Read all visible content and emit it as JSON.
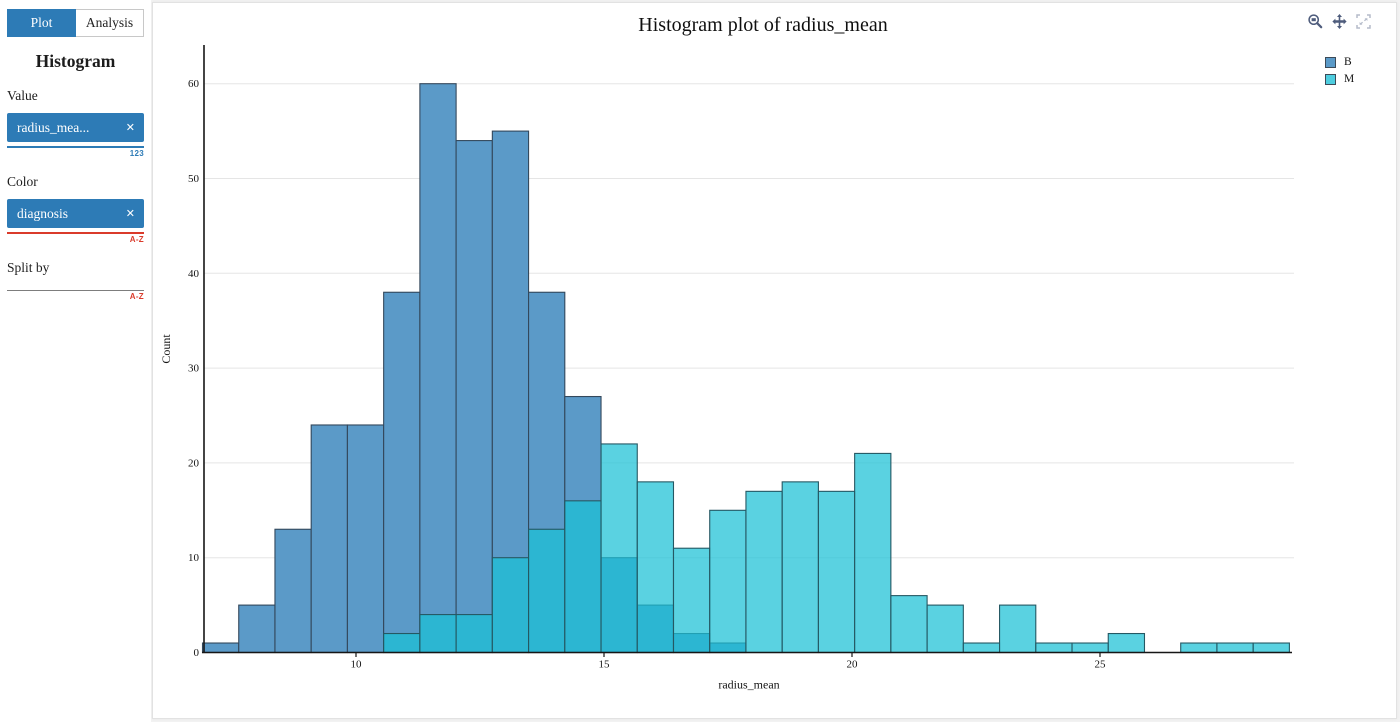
{
  "sidebar": {
    "tabs": [
      {
        "label": "Plot",
        "active": true
      },
      {
        "label": "Analysis",
        "active": false
      }
    ],
    "heading": "Histogram",
    "value_field": {
      "label": "Value",
      "chip": "radius_mea...",
      "remove_icon": "✕",
      "type_badge": "123"
    },
    "color_field": {
      "label": "Color",
      "chip": "diagnosis",
      "remove_icon": "✕",
      "type_badge": "A-Z"
    },
    "split_field": {
      "label": "Split by",
      "type_badge": "A-Z"
    }
  },
  "toolbar": {
    "icons": [
      "box-zoom",
      "pan",
      "fullscreen"
    ]
  },
  "chart_data": {
    "type": "bar",
    "subtype": "overlaid-histogram",
    "title": "Histogram plot of radius_mean",
    "xlabel": "radius_mean",
    "ylabel": "Count",
    "x_ticks": [
      10,
      15,
      20,
      25
    ],
    "y_ticks": [
      0,
      10,
      20,
      30,
      40,
      50,
      60
    ],
    "xlim": [
      6.94,
      28.85
    ],
    "ylim": [
      0,
      64
    ],
    "bins": 30,
    "bin_start": 6.94,
    "bin_width": 0.73,
    "grid": true,
    "legend_position": "top-right",
    "series": [
      {
        "name": "B",
        "values": [
          1,
          5,
          13,
          24,
          24,
          38,
          60,
          54,
          55,
          38,
          27,
          10,
          5,
          2,
          1,
          0,
          0,
          0,
          0,
          0,
          0,
          0,
          0,
          0,
          0,
          0,
          0,
          0,
          0,
          0
        ]
      },
      {
        "name": "M",
        "values": [
          0,
          0,
          0,
          0,
          0,
          2,
          4,
          4,
          10,
          13,
          16,
          22,
          18,
          11,
          15,
          17,
          18,
          17,
          21,
          6,
          5,
          1,
          5,
          1,
          1,
          2,
          0,
          1,
          1,
          1
        ]
      }
    ]
  },
  "colors": {
    "accent_blue": "#2d7bb6",
    "badge_red": "#da3b2b",
    "bar_b": "#5b9ac8",
    "bar_b_border": "#33485c",
    "bar_m": "#1ac0d6",
    "bar_m_border": "#255863",
    "bar_m_opacity": 0.72,
    "legend_b": "#5b9ac8",
    "legend_m": "#4ecddf",
    "grid": "#e5e5e5",
    "axis": "#161616"
  }
}
